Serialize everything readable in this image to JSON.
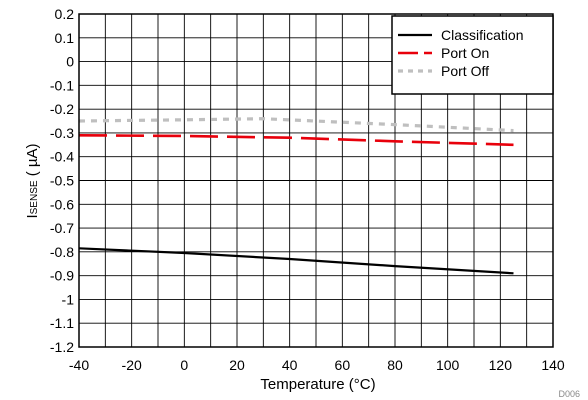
{
  "chart_data": {
    "type": "line",
    "xlabel": "Temperature (°C)",
    "ylabel_main": "I",
    "ylabel_sub": "SENSE",
    "ylabel_unit": " ( µA)",
    "xlim": [
      -40,
      140
    ],
    "ylim": [
      -1.2,
      0.2
    ],
    "xticks": [
      -40,
      -20,
      0,
      20,
      40,
      60,
      80,
      100,
      120,
      140
    ],
    "xtick_labels": [
      "-40",
      "-20",
      "0",
      "20",
      "40",
      "60",
      "80",
      "100",
      "120",
      "140"
    ],
    "yticks": [
      0.2,
      0.1,
      0,
      -0.1,
      -0.2,
      -0.3,
      -0.4,
      -0.5,
      -0.6,
      -0.7,
      -0.8,
      -0.9,
      -1,
      -1.1,
      -1.2
    ],
    "ytick_labels": [
      "0.2",
      "0.1",
      "0",
      "-0.1",
      "-0.2",
      "-0.3",
      "-0.4",
      "-0.5",
      "-0.6",
      "-0.7",
      "-0.8",
      "-0.9",
      "-1",
      "-1.1",
      "-1.2"
    ],
    "x_minor_step": 10,
    "grid": true,
    "legend_position": "top-right",
    "series": [
      {
        "name": "Classification",
        "color": "#000000",
        "style": "solid",
        "x": [
          -40,
          0,
          40,
          80,
          125
        ],
        "y": [
          -0.785,
          -0.805,
          -0.83,
          -0.86,
          -0.89
        ]
      },
      {
        "name": "Port On",
        "color": "#e8000b",
        "style": "dashed",
        "x": [
          -40,
          0,
          40,
          80,
          125
        ],
        "y": [
          -0.31,
          -0.313,
          -0.32,
          -0.335,
          -0.35
        ]
      },
      {
        "name": "Port Off",
        "color": "#bfbfbf",
        "style": "dotted",
        "x": [
          -40,
          0,
          30,
          80,
          125
        ],
        "y": [
          -0.25,
          -0.245,
          -0.24,
          -0.265,
          -0.29
        ]
      }
    ]
  },
  "source_code": "D006"
}
